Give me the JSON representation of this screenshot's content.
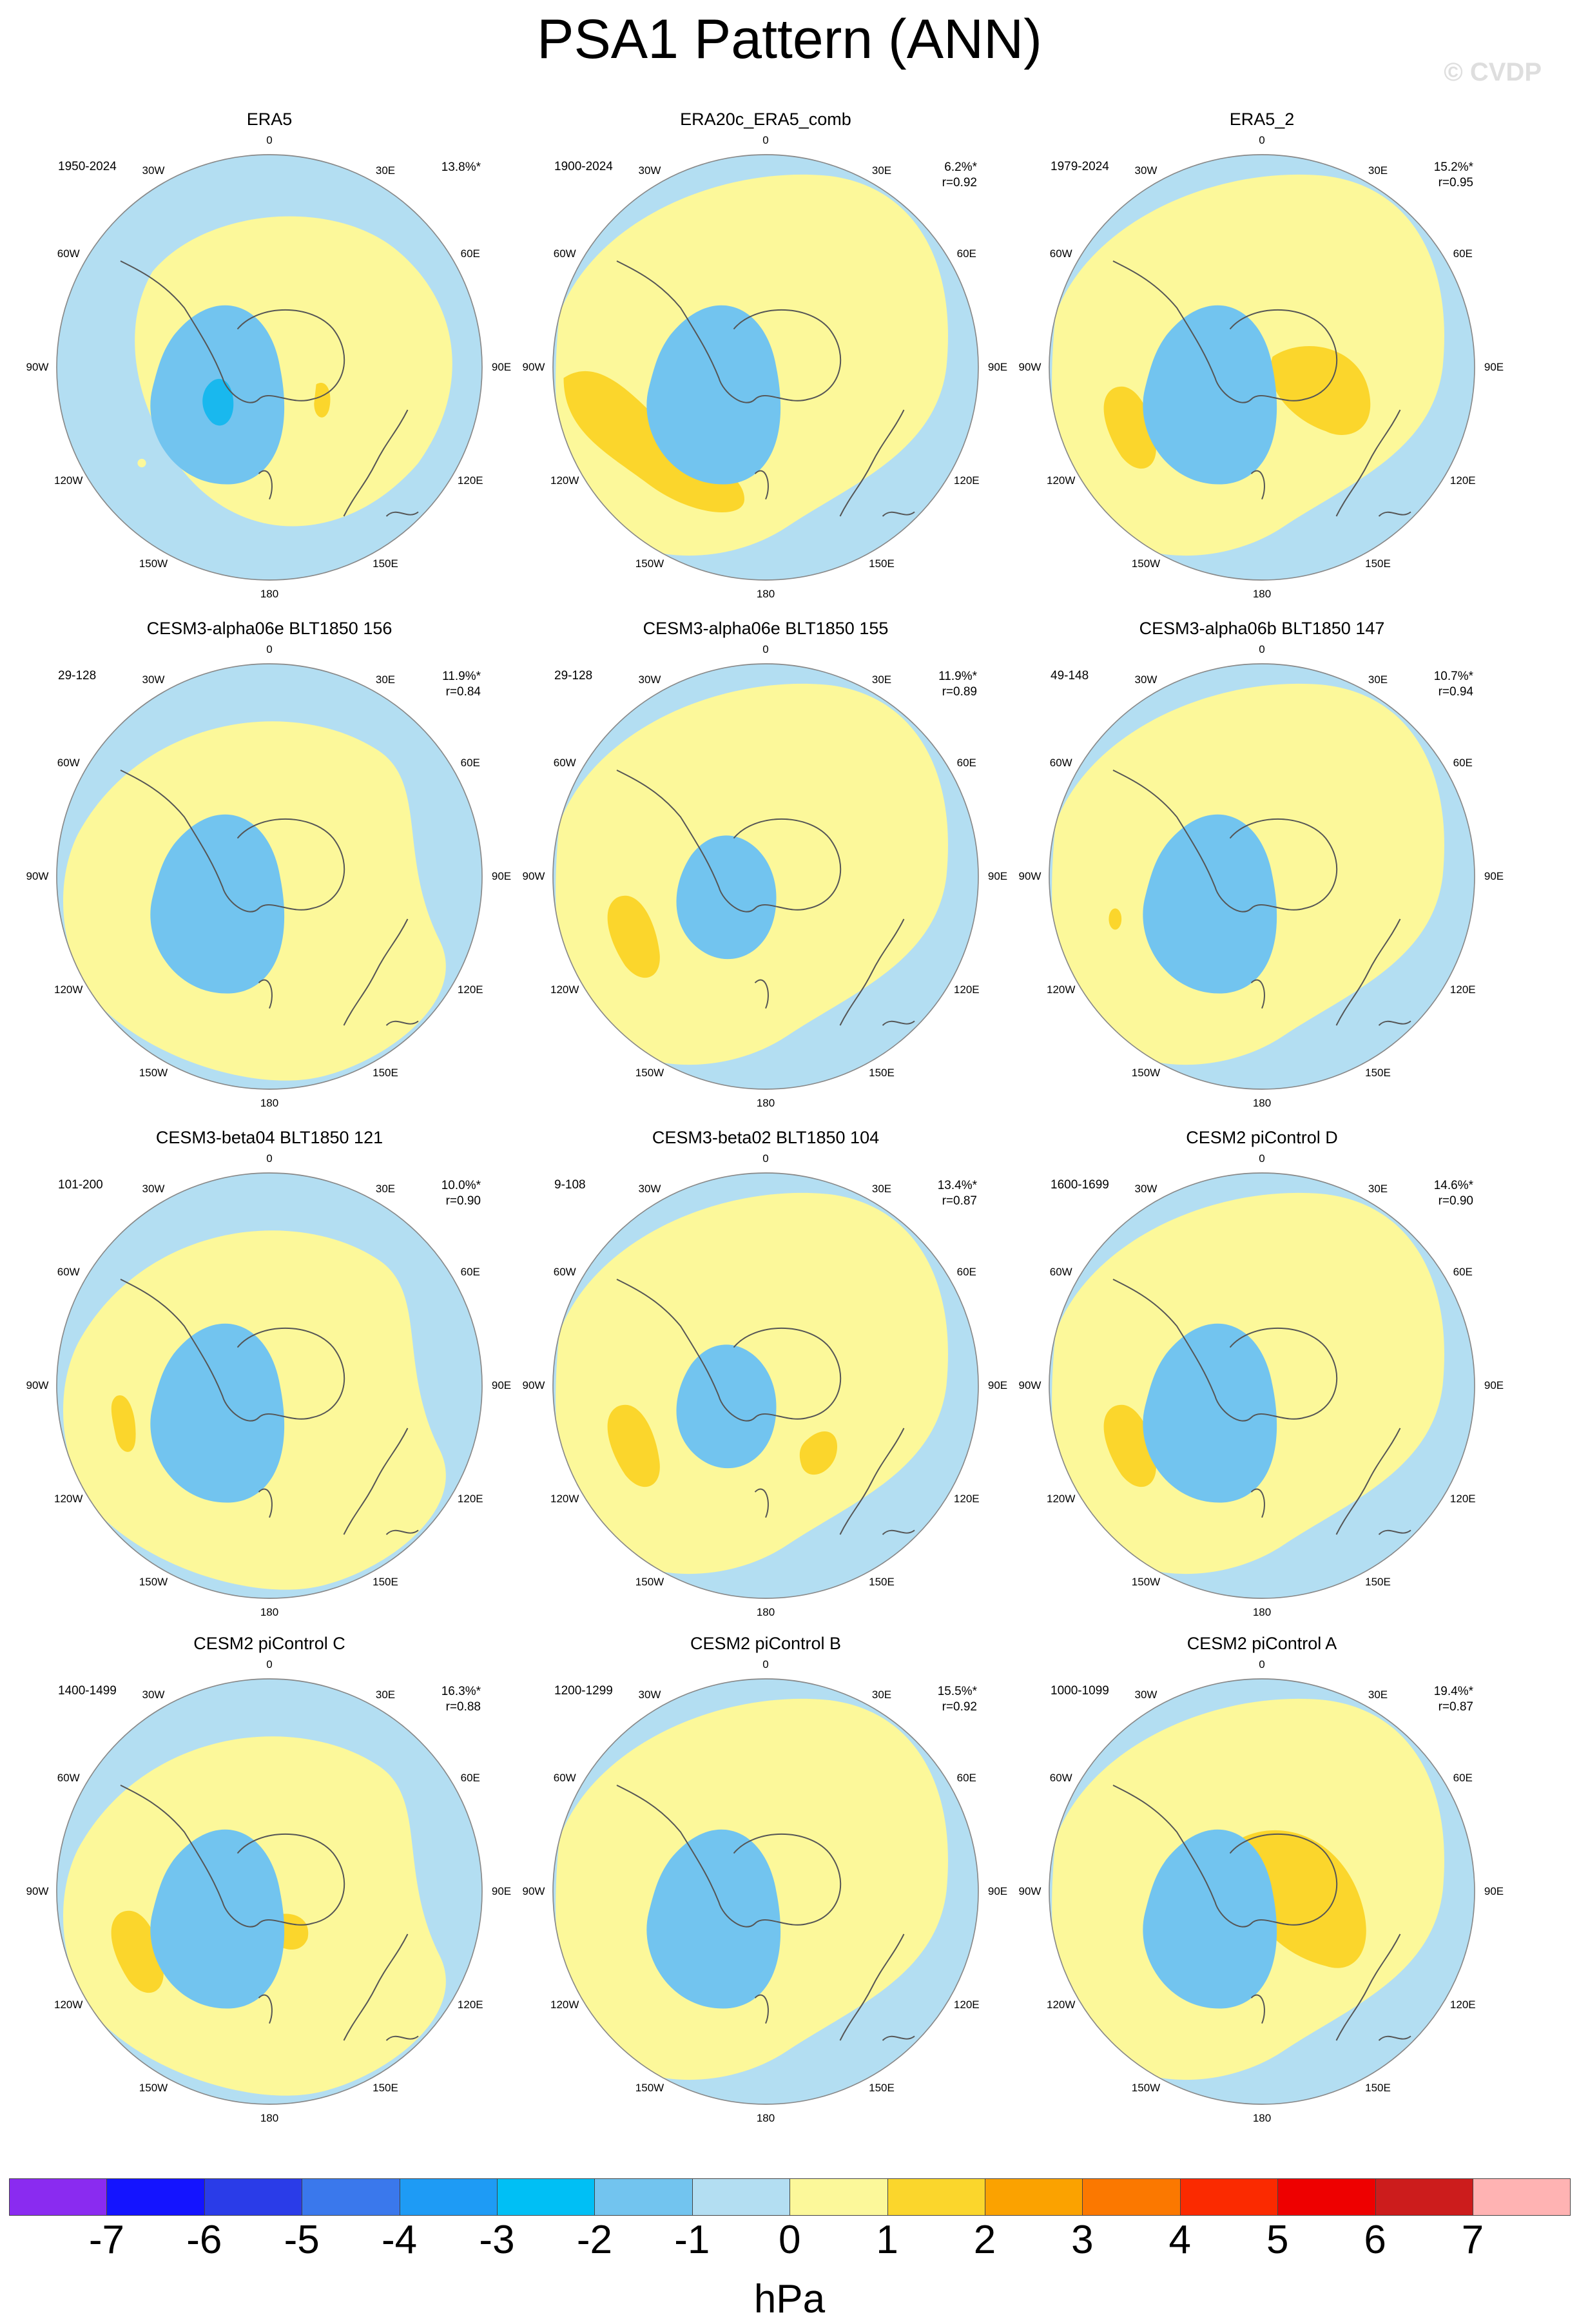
{
  "title": "PSA1 Pattern (ANN)",
  "watermark": "© CVDP",
  "lon_labels": [
    "0",
    "30E",
    "60E",
    "90E",
    "120E",
    "150E",
    "180",
    "150W",
    "120W",
    "90W",
    "60W",
    "30W"
  ],
  "colors": {
    "neg1": "#b3def2",
    "neg2": "#72c4ef",
    "neg3": "#19b8ee",
    "pos1": "#fcf89a",
    "pos2": "#fbd62c",
    "land_outline": "#555555",
    "globe_outline": "#888888"
  },
  "panels": [
    {
      "title": "ERA5",
      "years": "1950-2024",
      "pct": "13.8%*",
      "r": "",
      "pos1_shapes": [
        "core",
        "small_e"
      ],
      "neg2_shapes": [
        "west_low"
      ],
      "neg3_shapes": [
        "deep_core"
      ],
      "pos2_shapes": [
        "blob_e_small"
      ]
    },
    {
      "title": "ERA20c_ERA5_comb",
      "years": "1900-2024",
      "pct": "6.2%*",
      "r": "r=0.92",
      "pos1_shapes": [
        "large"
      ],
      "neg2_shapes": [
        "west_low"
      ],
      "pos2_shapes": [
        "sw_band"
      ]
    },
    {
      "title": "ERA5_2",
      "years": "1979-2024",
      "pct": "15.2%*",
      "r": "r=0.95",
      "pos1_shapes": [
        "large"
      ],
      "neg2_shapes": [
        "west_low"
      ],
      "pos2_shapes": [
        "sw_small",
        "east_blob"
      ]
    },
    {
      "title": "CESM3-alpha06e BLT1850 156",
      "years": "29-128",
      "pct": "11.9%*",
      "r": "r=0.84",
      "pos1_shapes": [
        "wide"
      ],
      "neg2_shapes": [
        "west_low"
      ]
    },
    {
      "title": "CESM3-alpha06e BLT1850 155",
      "years": "29-128",
      "pct": "11.9%*",
      "r": "r=0.89",
      "pos1_shapes": [
        "large"
      ],
      "neg2_shapes": [
        "small_low"
      ],
      "pos2_shapes": [
        "sw_small"
      ]
    },
    {
      "title": "CESM3-alpha06b BLT1850 147",
      "years": "49-148",
      "pct": "10.7%*",
      "r": "r=0.94",
      "pos1_shapes": [
        "large"
      ],
      "neg2_shapes": [
        "west_low"
      ],
      "pos2_shapes": [
        "tiny_w"
      ]
    },
    {
      "title": "CESM3-beta04 BLT1850 121",
      "years": "101-200",
      "pct": "10.0%*",
      "r": "r=0.90",
      "pos1_shapes": [
        "wide"
      ],
      "neg2_shapes": [
        "west_low"
      ],
      "pos2_shapes": [
        "tiny_w2"
      ]
    },
    {
      "title": "CESM3-beta02 BLT1850 104",
      "years": "9-108",
      "pct": "13.4%*",
      "r": "r=0.87",
      "pos1_shapes": [
        "large"
      ],
      "neg2_shapes": [
        "small_low"
      ],
      "pos2_shapes": [
        "sw_small",
        "se_blob"
      ]
    },
    {
      "title": "CESM2 piControl D",
      "years": "1600-1699",
      "pct": "14.6%*",
      "r": "r=0.90",
      "pos1_shapes": [
        "large"
      ],
      "neg2_shapes": [
        "west_low"
      ],
      "pos2_shapes": [
        "sw_small"
      ]
    },
    {
      "title": "CESM2 piControl C",
      "years": "1400-1499",
      "pct": "16.3%*",
      "r": "r=0.88",
      "pos1_shapes": [
        "wide"
      ],
      "neg2_shapes": [
        "west_low"
      ],
      "pos2_shapes": [
        "sw_small",
        "east_small"
      ]
    },
    {
      "title": "CESM2 piControl B",
      "years": "1200-1299",
      "pct": "15.5%*",
      "r": "r=0.92",
      "pos1_shapes": [
        "large"
      ],
      "neg2_shapes": [
        "west_low"
      ]
    },
    {
      "title": "CESM2 piControl A",
      "years": "1000-1099",
      "pct": "19.4%*",
      "r": "r=0.87",
      "pos1_shapes": [
        "large"
      ],
      "neg2_shapes": [
        "west_low"
      ],
      "pos2_shapes": [
        "east_big"
      ]
    }
  ],
  "colorbar": {
    "colors": [
      "#8a2bf0",
      "#1414ff",
      "#2a3ce8",
      "#3a78ec",
      "#1e9bf5",
      "#00bff5",
      "#72c4ef",
      "#b3def2",
      "#fcf89a",
      "#fbd62c",
      "#fba200",
      "#fb7800",
      "#fb2a00",
      "#ee0000",
      "#cc1c1c",
      "#ffb3b3"
    ],
    "labels": [
      "-7",
      "-6",
      "-5",
      "-4",
      "-3",
      "-2",
      "-1",
      "0",
      "1",
      "2",
      "3",
      "4",
      "5",
      "6",
      "7"
    ],
    "units": "hPa"
  }
}
